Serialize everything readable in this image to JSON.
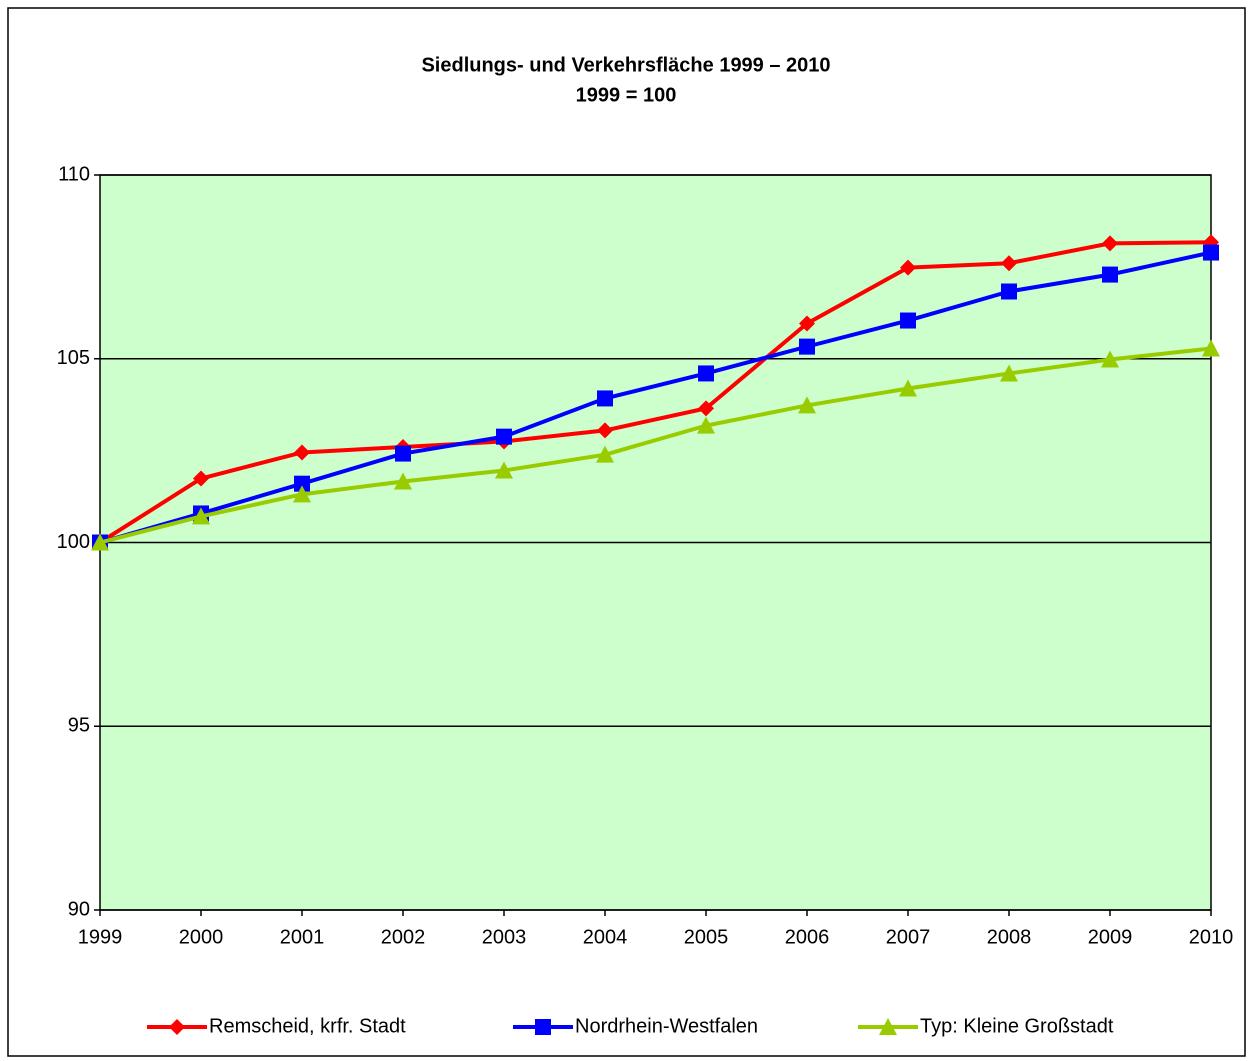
{
  "chart_data": {
    "type": "line",
    "title": "Siedlungs- und Verkehrsfläche 1999 – 2010",
    "subtitle": "1999 = 100",
    "categories": [
      "1999",
      "2000",
      "2001",
      "2002",
      "2003",
      "2004",
      "2005",
      "2006",
      "2007",
      "2008",
      "2009",
      "2010"
    ],
    "series": [
      {
        "name": "Remscheid, krfr. Stadt",
        "color": "#ff0000",
        "marker": "diamond",
        "values": [
          100,
          101.74,
          102.45,
          102.6,
          102.75,
          103.05,
          103.65,
          105.96,
          107.48,
          107.6,
          108.14,
          108.17
        ]
      },
      {
        "name": "Nordrhein-Westfalen",
        "color": "#0000ff",
        "marker": "square",
        "values": [
          100,
          100.79,
          101.6,
          102.42,
          102.88,
          103.92,
          104.6,
          105.33,
          106.04,
          106.83,
          107.29,
          107.89
        ]
      },
      {
        "name": "Typ: Kleine Großstadt",
        "color": "#99cc00",
        "marker": "triangle",
        "values": [
          100,
          100.71,
          101.31,
          101.66,
          101.96,
          102.39,
          103.18,
          103.73,
          104.19,
          104.6,
          104.98,
          105.28
        ]
      }
    ],
    "ylim": [
      90,
      110
    ],
    "yticks": [
      90,
      95,
      100,
      105,
      110
    ],
    "grid": true,
    "plot_background": "#ccffcc",
    "legend": "bottom"
  }
}
